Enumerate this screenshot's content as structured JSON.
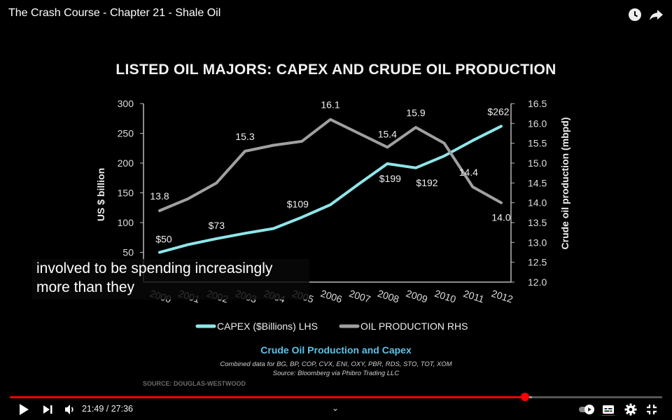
{
  "video": {
    "title": "The Crash Course - Chapter 21 - Shale Oil",
    "current_time": "21:49",
    "duration": "27:36",
    "progress_fraction": 0.79,
    "buffered_fraction": 0.8
  },
  "slide": {
    "title": "LISTED OIL MAJORS: CAPEX AND CRUDE OIL PRODUCTION",
    "caption": "Crude Oil Production and Capex",
    "combined": "Combined data for BG, BP, COP, CVX, ENI, OXY, PBR, RDS, STO, TOT, XOM",
    "source": "Source: Bloomberg via Phibro Trading LLC",
    "credit": "SOURCE: DOUGLAS-WESTWOOD"
  },
  "subtitles": [
    "involved to be spending increasingly",
    "more than they"
  ],
  "colors": {
    "capex": "#8ee6ea",
    "production": "#a0a0a0",
    "progress": "#ff0000",
    "caption": "#5ec3e6"
  },
  "icons": [
    "watch-later-icon",
    "share-icon",
    "play-icon",
    "next-icon",
    "volume-icon",
    "chevron-down-icon",
    "autoplay-toggle-icon",
    "captions-icon",
    "settings-icon",
    "exit-fullscreen-icon"
  ],
  "chart_data": {
    "type": "line",
    "title": "LISTED OIL MAJORS: CAPEX AND CRUDE OIL PRODUCTION",
    "categories": [
      "2000",
      "2001",
      "2002",
      "2003",
      "2004",
      "2005",
      "2006",
      "2007",
      "2008",
      "2009",
      "2010",
      "2011",
      "2012"
    ],
    "ylabel": "US $ billion",
    "y2label": "Crude oil production (mbpd)",
    "ylim": [
      0,
      300
    ],
    "y2lim": [
      12.0,
      16.5
    ],
    "yticks": [
      "50",
      "100",
      "150",
      "200",
      "250",
      "300"
    ],
    "y2ticks": [
      "12.0",
      "12.5",
      "13.0",
      "13.5",
      "14.0",
      "14.5",
      "15.0",
      "15.5",
      "16.0",
      "16.5"
    ],
    "series": [
      {
        "name": "CAPEX ($Billions) LHS",
        "axis": "left",
        "values": [
          50,
          63,
          73,
          82,
          90,
          109,
          130,
          165,
          199,
          192,
          212,
          238,
          262
        ]
      },
      {
        "name": "OIL PRODUCTION  RHS",
        "axis": "right",
        "values": [
          13.8,
          14.1,
          14.5,
          15.3,
          15.45,
          15.55,
          16.1,
          15.75,
          15.4,
          15.9,
          15.5,
          14.4,
          14.0
        ]
      }
    ],
    "data_labels": [
      {
        "series": 0,
        "index": 0,
        "text": "$50"
      },
      {
        "series": 0,
        "index": 2,
        "text": "$73"
      },
      {
        "series": 0,
        "index": 5,
        "text": "$109"
      },
      {
        "series": 0,
        "index": 8,
        "text": "$199"
      },
      {
        "series": 0,
        "index": 9,
        "text": "$192"
      },
      {
        "series": 0,
        "index": 12,
        "text": "$262"
      },
      {
        "series": 1,
        "index": 0,
        "text": "13.8"
      },
      {
        "series": 1,
        "index": 3,
        "text": "15.3"
      },
      {
        "series": 1,
        "index": 6,
        "text": "16.1"
      },
      {
        "series": 1,
        "index": 8,
        "text": "15.4"
      },
      {
        "series": 1,
        "index": 9,
        "text": "15.9"
      },
      {
        "series": 1,
        "index": 11,
        "text": "14.4"
      },
      {
        "series": 1,
        "index": 12,
        "text": "14.0"
      }
    ],
    "legend": "bottom",
    "grid": false
  }
}
